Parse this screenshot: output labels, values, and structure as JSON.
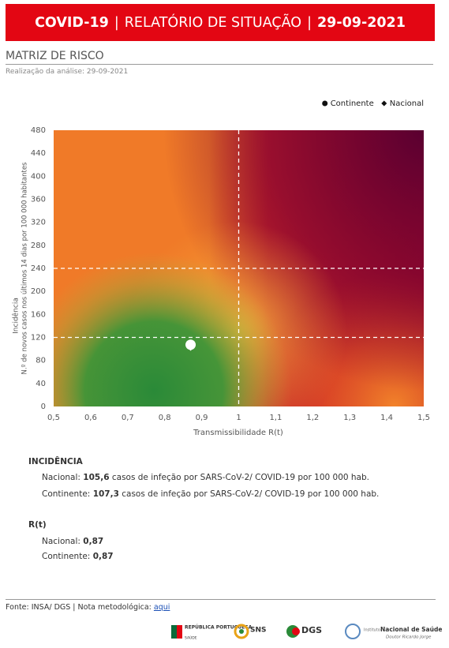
{
  "header": {
    "title": "COVID-19",
    "separator_1": "|",
    "report": "RELATÓRIO DE SITUAÇÃO",
    "separator_2": "|",
    "date": "29-09-2021"
  },
  "section": {
    "title": "MATRIZ DE RISCO",
    "subtitle": "Realização da análise: 29-09-2021"
  },
  "chart_data": {
    "type": "scatter",
    "x_label": "Transmissibilidade R(t)",
    "y_label": [
      "Incidência",
      "N.º de novos casos nos últimos 14 dias por 100 000 habitantes"
    ],
    "series": [
      {
        "name": "Continente",
        "marker": "circle",
        "color": "#ffffff",
        "x": [
          0.87
        ],
        "values": [
          107.3
        ]
      },
      {
        "name": "Nacional",
        "marker": "diamond",
        "color": "#ffffff",
        "x": [
          0.87
        ],
        "values": [
          105.6
        ]
      }
    ],
    "reference_lines": {
      "x": [
        1
      ],
      "y": [
        120,
        240
      ]
    },
    "xlim": [
      0.5,
      1.5
    ],
    "xticks": [
      {
        "value": 0.5,
        "label": "0,5"
      },
      {
        "value": 0.6,
        "label": "0,6"
      },
      {
        "value": 0.7,
        "label": "0,7"
      },
      {
        "value": 0.8,
        "label": "0,8"
      },
      {
        "value": 0.9,
        "label": "0,9"
      },
      1,
      {
        "value": 1.1,
        "label": "1,1"
      },
      {
        "value": 1.2,
        "label": "1,2"
      },
      {
        "value": 1.3,
        "label": "1,3"
      },
      {
        "value": 1.4,
        "label": "1,4"
      },
      {
        "value": 1.5,
        "label": "1,5"
      }
    ],
    "ylim": [
      0,
      480
    ],
    "yticks": [
      0,
      40,
      80,
      120,
      160,
      200,
      240,
      280,
      320,
      360,
      400,
      440,
      480
    ],
    "legend": "top-right"
  },
  "incidence": {
    "title": "INCIDÊNCIA",
    "lines": [
      {
        "label": "Nacional:",
        "value": "105,6",
        "text": "casos de infeção por SARS-CoV-2/ COVID-19 por 100 000 hab."
      },
      {
        "label": "Continente:",
        "value": "107,3",
        "text": "casos de infeção por SARS-CoV-2/ COVID-19 por 100 000 hab."
      }
    ]
  },
  "rt": {
    "title": "R(t)",
    "lines": [
      {
        "label": "Nacional:",
        "value": "0,87"
      },
      {
        "label": "Continente:",
        "value": "0,87"
      }
    ]
  },
  "footer": {
    "source": "Fonte: INSA/ DGS  |  Nota metodológica:",
    "link": "aqui"
  },
  "logos": [
    "REPÚBLICA PORTUGUESA",
    "SAÚDE",
    "SNS",
    "DGS",
    "Instituto",
    "Nacional de Saúde",
    "Doutor Ricardo Jorge"
  ]
}
